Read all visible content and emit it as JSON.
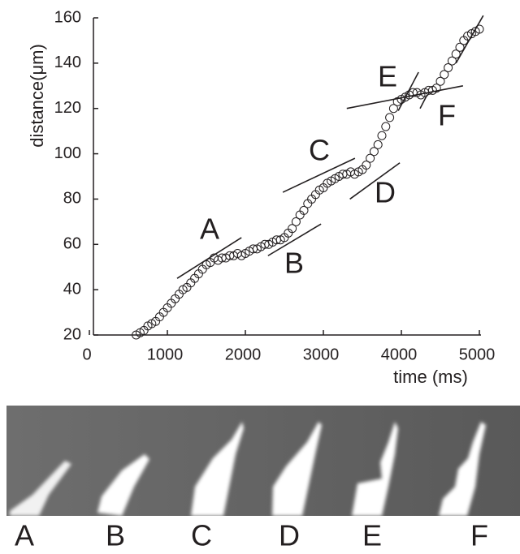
{
  "chart_data": {
    "type": "scatter",
    "xlabel": "time (ms)",
    "ylabel": "distance(μm)",
    "xlim": [
      0,
      5000
    ],
    "ylim": [
      20,
      160
    ],
    "xticks": [
      0,
      1000,
      2000,
      3000,
      4000,
      5000
    ],
    "yticks": [
      20,
      40,
      60,
      80,
      100,
      120,
      140,
      160
    ],
    "color": "#231f20",
    "x": [
      600,
      650,
      700,
      750,
      800,
      850,
      900,
      950,
      1000,
      1050,
      1100,
      1150,
      1200,
      1250,
      1300,
      1350,
      1400,
      1450,
      1500,
      1550,
      1600,
      1650,
      1700,
      1750,
      1800,
      1850,
      1900,
      1950,
      2000,
      2050,
      2100,
      2150,
      2200,
      2250,
      2300,
      2350,
      2400,
      2450,
      2500,
      2550,
      2600,
      2650,
      2700,
      2750,
      2800,
      2850,
      2900,
      2950,
      3000,
      3050,
      3100,
      3150,
      3200,
      3250,
      3300,
      3350,
      3400,
      3450,
      3500,
      3550,
      3600,
      3650,
      3700,
      3750,
      3800,
      3850,
      3900,
      3950,
      4000,
      4050,
      4100,
      4150,
      4200,
      4250,
      4300,
      4350,
      4400,
      4450,
      4500,
      4550,
      4600,
      4650,
      4700,
      4750,
      4800,
      4850,
      4900,
      4950,
      5000
    ],
    "y": [
      20,
      21,
      22,
      24,
      25,
      26,
      28,
      30,
      32,
      34,
      36,
      38,
      40,
      41,
      43,
      45,
      47,
      49,
      51,
      52,
      54,
      53,
      54,
      54,
      55,
      55,
      56,
      55,
      56,
      57,
      58,
      58,
      59,
      60,
      60,
      61,
      62,
      62,
      63,
      65,
      67,
      70,
      73,
      75,
      78,
      80,
      82,
      84,
      85,
      87,
      88,
      89,
      90,
      91,
      91,
      92,
      91,
      92,
      93,
      95,
      98,
      101,
      104,
      108,
      112,
      116,
      120,
      123,
      124,
      125,
      126,
      127,
      127,
      126,
      127,
      128,
      128,
      129,
      132,
      135,
      138,
      141,
      144,
      147,
      150,
      152,
      153,
      154,
      155
    ],
    "fit_lines": [
      {
        "x": [
          1125,
          1950
        ],
        "y": [
          45,
          63
        ]
      },
      {
        "x": [
          2290,
          2970
        ],
        "y": [
          55,
          69
        ]
      },
      {
        "x": [
          2480,
          3405
        ],
        "y": [
          83,
          98
        ]
      },
      {
        "x": [
          3340,
          3980
        ],
        "y": [
          80,
          96
        ]
      },
      {
        "x": [
          3960,
          4220
        ],
        "y": [
          119,
          136
        ]
      },
      {
        "x": [
          3300,
          4790
        ],
        "y": [
          120,
          130
        ]
      },
      {
        "x": [
          4240,
          4330
        ],
        "y": [
          120,
          126
        ]
      },
      {
        "x": [
          4700,
          5050
        ],
        "y": [
          140,
          161
        ]
      }
    ],
    "annotations": [
      "A",
      "B",
      "C",
      "D",
      "E",
      "F"
    ],
    "frame_labels": [
      "A",
      "B",
      "C",
      "D",
      "E",
      "F"
    ]
  }
}
